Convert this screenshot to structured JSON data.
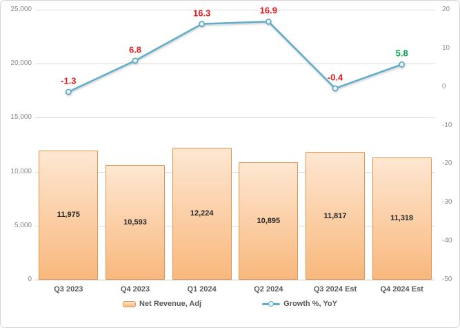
{
  "chart_data": {
    "type": "combo-bar-line",
    "categories": [
      "Q3 2023",
      "Q4 2023",
      "Q1 2024",
      "Q2 2024",
      "Q3 2024 Est",
      "Q4 2024 Est"
    ],
    "series": [
      {
        "name": "Net Revenue, Adj",
        "type": "bar",
        "axis": "left",
        "values": [
          11975,
          10593,
          12224,
          10895,
          11817,
          11318
        ],
        "labels": [
          "11,975",
          "10,593",
          "12,224",
          "10,895",
          "11,817",
          "11,318"
        ]
      },
      {
        "name": "Growth %, YoY",
        "type": "line",
        "axis": "right",
        "values": [
          -1.3,
          6.8,
          16.3,
          16.9,
          -0.4,
          5.8
        ],
        "labels": [
          "-1.3",
          "6.8",
          "16.3",
          "16.9",
          "-0.4",
          "5.8"
        ],
        "label_colors": [
          "#e31b1b",
          "#e31b1b",
          "#e31b1b",
          "#e31b1b",
          "#e31b1b",
          "#00a651"
        ]
      }
    ],
    "left_axis": {
      "min": 0,
      "max": 25000,
      "tick_labels": [
        "25,000",
        "20,000",
        "15,000",
        "10,000",
        "5,000",
        "0"
      ]
    },
    "right_axis": {
      "min": -50,
      "max": 20,
      "tick_labels": [
        "20",
        "10",
        "0",
        "-10",
        "-20",
        "-30",
        "-40",
        "-50"
      ]
    },
    "legend_position": "bottom",
    "grid": true
  },
  "legend": {
    "bar_label": "Net Revenue, Adj",
    "line_label": "Growth %, YoY"
  },
  "colors": {
    "bar_fill_top": "#fde7d2",
    "bar_fill_bottom": "#f8b87d",
    "bar_border": "#e2944e",
    "line": "#5fadc8",
    "marker_fill": "#e8f4f9",
    "marker_border": "#58a7c4",
    "gridline": "#dadada",
    "tick_text": "#8a8a8a",
    "category_text": "#595959",
    "bar_label_text": "#262626",
    "growth_label_red": "#e31b1b",
    "growth_label_green": "#00a651"
  }
}
